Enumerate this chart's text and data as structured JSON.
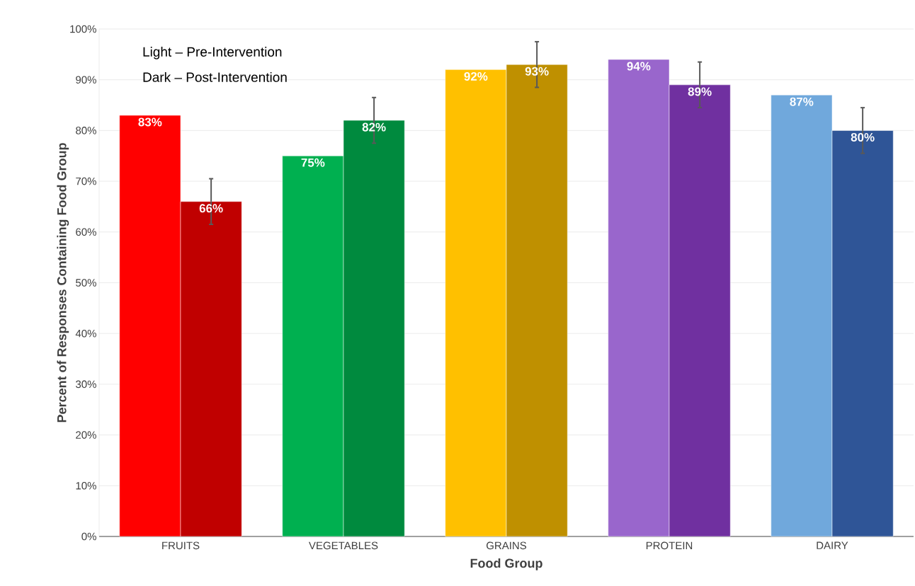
{
  "chart_data": {
    "type": "bar",
    "xlabel": "Food Group",
    "ylabel": "Percent of Responses Containing Food Group",
    "categories": [
      "FRUITS",
      "VEGETABLES",
      "GRAINS",
      "PROTEIN",
      "DAIRY"
    ],
    "series": [
      {
        "colors": [
          "#ff0000",
          "#00b050",
          "#ffc000",
          "#9966cc",
          "#70a8dc"
        ],
        "values": [
          83,
          75,
          92,
          94,
          87
        ],
        "value_labels": [
          "83%",
          "75%",
          "92%",
          "94%",
          "87%"
        ]
      },
      {
        "colors": [
          "#c00000",
          "#008a3e",
          "#bf9000",
          "#7030a0",
          "#2f5597"
        ],
        "values": [
          66,
          82,
          93,
          89,
          80
        ],
        "value_labels": [
          "66%",
          "82%",
          "93%",
          "89%",
          "80%"
        ],
        "errors": [
          4.5,
          4.5,
          4.5,
          4.5,
          4.5
        ]
      }
    ],
    "ylim": [
      0,
      100
    ],
    "yticks": [
      {
        "value": 0,
        "label": "0%"
      },
      {
        "value": 10,
        "label": "10%"
      },
      {
        "value": 20,
        "label": "20%"
      },
      {
        "value": 30,
        "label": "30%"
      },
      {
        "value": 40,
        "label": "40%"
      },
      {
        "value": 50,
        "label": "50%"
      },
      {
        "value": 60,
        "label": "60%"
      },
      {
        "value": 70,
        "label": "70%"
      },
      {
        "value": 80,
        "label": "80%"
      },
      {
        "value": 90,
        "label": "90%"
      },
      {
        "value": 100,
        "label": "100%"
      }
    ],
    "grid": "y",
    "annotations": [
      "Light – Pre-Intervention",
      "Dark – Post-Intervention"
    ]
  }
}
